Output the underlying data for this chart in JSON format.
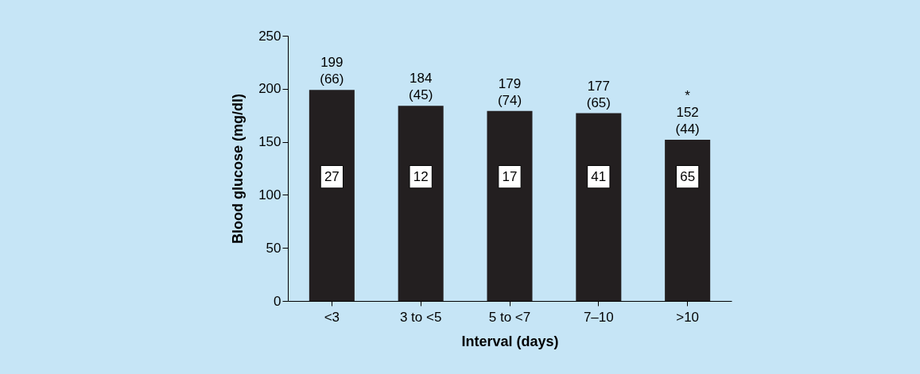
{
  "chart_data": {
    "type": "bar",
    "xlabel": "Interval (days)",
    "ylabel": "Blood glucose (mg/dl)",
    "categories": [
      "<3",
      "3 to <5",
      "5 to <7",
      "7–10",
      ">10"
    ],
    "values": [
      199,
      184,
      179,
      177,
      152
    ],
    "color": "#231f20",
    "value_labels": [
      "199\n(66)",
      "184\n(45)",
      "179\n(74)",
      "177\n(65)",
      "*\n152\n(44)"
    ],
    "ylim": [
      0,
      250
    ],
    "yticks": [
      0,
      50,
      100,
      150,
      200,
      250
    ],
    "annotations": [
      {
        "text": "27",
        "x": "<3",
        "y": 117
      },
      {
        "text": "12",
        "x": "3 to <5",
        "y": 117
      },
      {
        "text": "17",
        "x": "5 to <7",
        "y": 117
      },
      {
        "text": "41",
        "x": "7–10",
        "y": 117
      },
      {
        "text": "65",
        "x": ">10",
        "y": 117
      }
    ]
  }
}
